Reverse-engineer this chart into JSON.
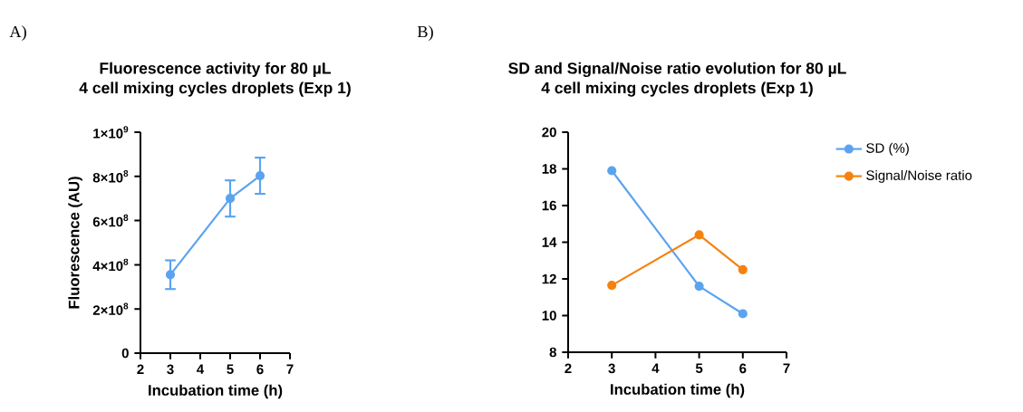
{
  "chart_data": [
    {
      "type": "line",
      "title": "Fluorescence activity for 80 µL\n4 cell mixing cycles droplets (Exp 1)",
      "xlabel": "Incubation time (h)",
      "ylabel": "Fluorescence (AU)",
      "annotations": [
        "A)"
      ],
      "x": [
        3,
        5,
        6
      ],
      "values": [
        355000000,
        700000000,
        803000000
      ],
      "errors": [
        65000000,
        82000000,
        82000000
      ],
      "color": "#5ba3f0",
      "marker": "circle",
      "line_style": "solid",
      "xlim": [
        2,
        7
      ],
      "xticks": [
        2,
        3,
        4,
        5,
        6,
        7
      ],
      "ylim": [
        0,
        1000000000
      ],
      "yticks": [
        0,
        {
          "value": 200000000,
          "label": "2×10$^{8}$"
        },
        {
          "value": 400000000,
          "label": "4×10$^{8}$"
        },
        {
          "value": 600000000,
          "label": "6×10$^{8}$"
        },
        {
          "value": 800000000,
          "label": "8×10$^{8}$"
        },
        {
          "value": 1000000000,
          "label": "1×10$^{9}$"
        }
      ]
    },
    {
      "type": "line",
      "title": "SD and Signal/Noise ratio evolution for 80 µL\n4 cell mixing cycles droplets (Exp 1)",
      "xlabel": "Incubation time (h)",
      "annotations": [
        "B)"
      ],
      "x": [
        3,
        5,
        6
      ],
      "marker": "circle",
      "line_style": "solid",
      "legend": "right",
      "series": [
        {
          "name": "SD (%)",
          "color": "#5ba3f0",
          "values": [
            17.9,
            11.6,
            10.1
          ]
        },
        {
          "name": "Signal/Noise ratio",
          "color": "#f5820f",
          "values": [
            11.65,
            14.4,
            12.5
          ]
        }
      ],
      "xlim": [
        2,
        7
      ],
      "xticks": [
        2,
        3,
        4,
        5,
        6,
        7
      ],
      "ylim": [
        8,
        20
      ],
      "yticks": [
        8,
        10,
        12,
        14,
        16,
        18,
        20
      ]
    }
  ]
}
